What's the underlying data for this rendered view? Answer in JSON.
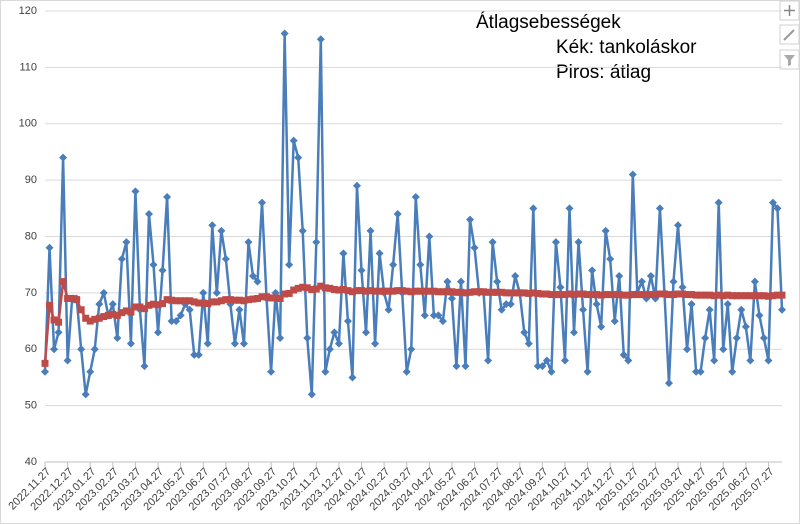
{
  "chart_data": {
    "type": "line",
    "title_lines": [
      "Átlagsebességek",
      "Kék: tankoláskor",
      "Piros: átlag"
    ],
    "categories": [
      "2022.11.27",
      null,
      null,
      null,
      null,
      "2022.12.27",
      null,
      null,
      null,
      null,
      "2023.01.27",
      null,
      null,
      null,
      null,
      "2023.02.27",
      null,
      null,
      null,
      null,
      "2023.03.27",
      null,
      null,
      null,
      null,
      "2023.04.27",
      null,
      null,
      null,
      null,
      "2023.05.27",
      null,
      null,
      null,
      null,
      "2023.06.27",
      null,
      null,
      null,
      null,
      "2023.07.27",
      null,
      null,
      null,
      null,
      "2023.08.27",
      null,
      null,
      null,
      null,
      "2023.09.27",
      null,
      null,
      null,
      null,
      "2023.10.27",
      null,
      null,
      null,
      null,
      "2023.11.27",
      null,
      null,
      null,
      null,
      "2023.12.27",
      null,
      null,
      null,
      null,
      "2024.01.27",
      null,
      null,
      null,
      null,
      "2024.02.27",
      null,
      null,
      null,
      null,
      "2024.03.27",
      null,
      null,
      null,
      null,
      "2024.04.27",
      null,
      null,
      null,
      null,
      "2024.05.27",
      null,
      null,
      null,
      null,
      "2024.06.27",
      null,
      null,
      null,
      null,
      "2024.07.27",
      null,
      null,
      null,
      null,
      "2024.08.27",
      null,
      null,
      null,
      null,
      "2024.09.27",
      null,
      null,
      null,
      null,
      "2024.10.27",
      null,
      null,
      null,
      null,
      "2024.11.27",
      null,
      null,
      null,
      null,
      "2024.12.27",
      null,
      null,
      null,
      null,
      "2025.01.27",
      null,
      null,
      null,
      null,
      "2025.02.27",
      null,
      null,
      null,
      null,
      "2025.03.27",
      null,
      null,
      null,
      null,
      "2025.04.27",
      null,
      null,
      null,
      null,
      "2025.05.27",
      null,
      null,
      null,
      null,
      "2025.06.27",
      null,
      null,
      null,
      null,
      "2025.07.27",
      null,
      null,
      null
    ],
    "series": [
      {
        "color": "#4a7ebb",
        "marker": "diamond",
        "values": [
          56,
          78,
          60,
          63,
          94,
          58,
          69,
          69,
          60,
          52,
          56,
          60,
          68,
          70,
          66,
          68,
          62,
          76,
          79,
          61,
          88,
          67,
          57,
          84,
          75,
          63,
          74,
          87,
          65,
          65,
          66,
          68,
          67,
          59,
          59,
          70,
          61,
          82,
          70,
          81,
          76,
          68,
          61,
          67,
          61,
          79,
          73,
          72,
          86,
          69,
          56,
          70,
          62,
          116,
          75,
          97,
          94,
          81,
          62,
          52,
          79,
          115,
          56,
          60,
          63,
          61,
          77,
          65,
          55,
          89,
          74,
          63,
          81,
          61,
          77,
          70,
          67,
          75,
          84,
          70,
          56,
          60,
          87,
          75,
          66,
          80,
          66,
          66,
          65,
          72,
          69,
          57,
          72,
          57,
          83,
          78,
          70,
          70,
          58,
          79,
          72,
          67,
          68,
          68,
          73,
          70,
          63,
          61,
          85,
          57,
          57,
          58,
          56,
          79,
          71,
          58,
          85,
          63,
          79,
          67,
          56,
          74,
          68,
          64,
          81,
          76,
          65,
          73,
          59,
          58,
          91,
          70,
          72,
          69,
          73,
          69,
          85,
          70,
          54,
          72,
          82,
          71,
          60,
          68,
          56,
          56,
          62,
          67,
          58,
          86,
          60,
          68,
          56,
          62,
          67,
          64,
          58,
          72,
          66,
          62,
          58,
          86,
          85,
          67
        ]
      },
      {
        "color": "#be4b48",
        "marker": "square",
        "values": [
          57.5,
          67.8,
          65.2,
          64.8,
          72,
          69,
          69,
          68.8,
          67,
          65.5,
          65,
          65.3,
          65.5,
          65.8,
          66,
          66.2,
          66,
          66.5,
          66.8,
          66.6,
          67.5,
          67.5,
          67.2,
          67.8,
          68,
          67.9,
          68.1,
          68.8,
          68.7,
          68.6,
          68.6,
          68.6,
          68.6,
          68.4,
          68.2,
          68.2,
          68.1,
          68.4,
          68.4,
          68.6,
          68.8,
          68.8,
          68.7,
          68.7,
          68.6,
          68.8,
          68.9,
          69,
          69.3,
          69.3,
          69.1,
          69.1,
          69,
          69.8,
          69.9,
          70.5,
          70.8,
          71,
          70.9,
          70.6,
          70.7,
          71.2,
          70.9,
          70.8,
          70.6,
          70.5,
          70.6,
          70.4,
          70.2,
          70.4,
          70.4,
          70.3,
          70.4,
          70.3,
          70.3,
          70.3,
          70.3,
          70.3,
          70.4,
          70.4,
          70.3,
          70.2,
          70.3,
          70.3,
          70.3,
          70.3,
          70.3,
          70.2,
          70.2,
          70.2,
          70.2,
          70.1,
          70.1,
          70,
          70.1,
          70.2,
          70.2,
          70.2,
          70.1,
          70.1,
          70.1,
          70.1,
          70,
          70,
          70,
          70,
          70,
          69.9,
          70,
          69.9,
          69.8,
          69.8,
          69.7,
          69.7,
          69.7,
          69.7,
          69.8,
          69.7,
          69.8,
          69.8,
          69.7,
          69.7,
          69.7,
          69.6,
          69.7,
          69.7,
          69.7,
          69.7,
          69.6,
          69.6,
          69.7,
          69.7,
          69.7,
          69.7,
          69.7,
          69.7,
          69.8,
          69.8,
          69.7,
          69.7,
          69.8,
          69.8,
          69.7,
          69.7,
          69.6,
          69.6,
          69.6,
          69.6,
          69.5,
          69.6,
          69.5,
          69.6,
          69.5,
          69.5,
          69.5,
          69.5,
          69.5,
          69.5,
          69.5,
          69.5,
          69.4,
          69.5,
          69.6,
          69.6
        ]
      }
    ],
    "ylim": [
      40,
      120
    ],
    "yticks": [
      40,
      50,
      60,
      70,
      80,
      90,
      100,
      110,
      120
    ],
    "grid": true
  }
}
